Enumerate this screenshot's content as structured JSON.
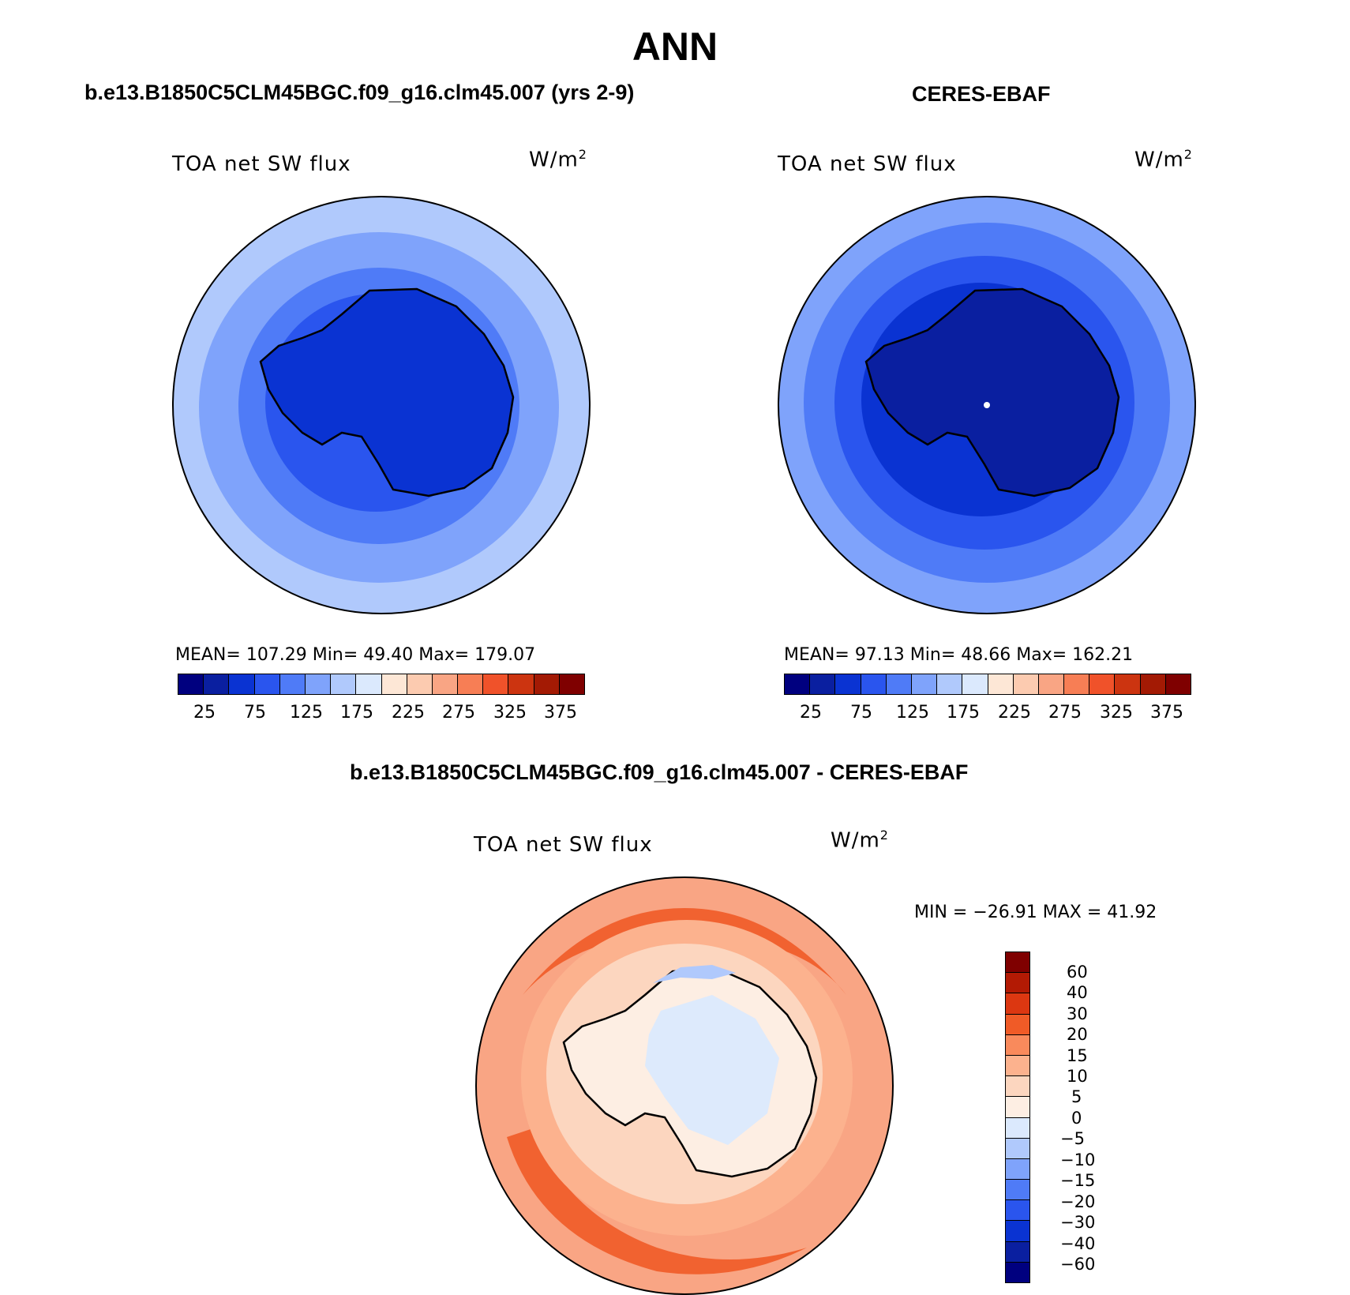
{
  "main_title": "ANN",
  "panels": [
    {
      "title": "b.e13.B1850C5CLM45BGC.f09_g16.clm45.007 (yrs 2-9)",
      "var_label": "TOA net SW flux",
      "units": "W/m",
      "units_sup": "2",
      "stats": "MEAN= 107.29   Min=   49.40   Max= 179.07",
      "ticks": [
        "25",
        "75",
        "125",
        "175",
        "225",
        "275",
        "325",
        "375"
      ]
    },
    {
      "title": "CERES-EBAF",
      "var_label": "TOA net SW flux",
      "units": "W/m",
      "units_sup": "2",
      "stats": "MEAN=   97.13   Min=   48.66   Max= 162.21",
      "ticks": [
        "25",
        "75",
        "125",
        "175",
        "225",
        "275",
        "325",
        "375"
      ]
    }
  ],
  "diff_panel": {
    "title": "b.e13.B1850C5CLM45BGC.f09_g16.clm45.007 - CERES-EBAF",
    "var_label": "TOA net SW flux",
    "units": "W/m",
    "units_sup": "2",
    "stats": "MIN = −26.91  MAX =   41.92",
    "ticks": [
      "60",
      "40",
      "30",
      "20",
      "15",
      "10",
      "5",
      "0",
      "−5",
      "−10",
      "−15",
      "−20",
      "−30",
      "−40",
      "−60"
    ]
  },
  "colors": {
    "abs_scale": [
      "#00007f",
      "#0a1fa0",
      "#0a33d2",
      "#2a55ee",
      "#4f7bf7",
      "#7fa3fb",
      "#b0c9fc",
      "#dbe9fd",
      "#fde7d6",
      "#fccbb0",
      "#f9a584",
      "#f77e55",
      "#f0522a",
      "#cc3410",
      "#a31a04",
      "#7f0000"
    ],
    "diff_scale": [
      "#7f0000",
      "#b31a04",
      "#dc3711",
      "#f05b27",
      "#f98a5c",
      "#fcb28e",
      "#fcd6bf",
      "#fdeee3",
      "#dbe9fd",
      "#b0c9fc",
      "#7fa3fb",
      "#4f7bf7",
      "#2a55ee",
      "#0a33d2",
      "#0a1fa0",
      "#00007f"
    ]
  }
}
